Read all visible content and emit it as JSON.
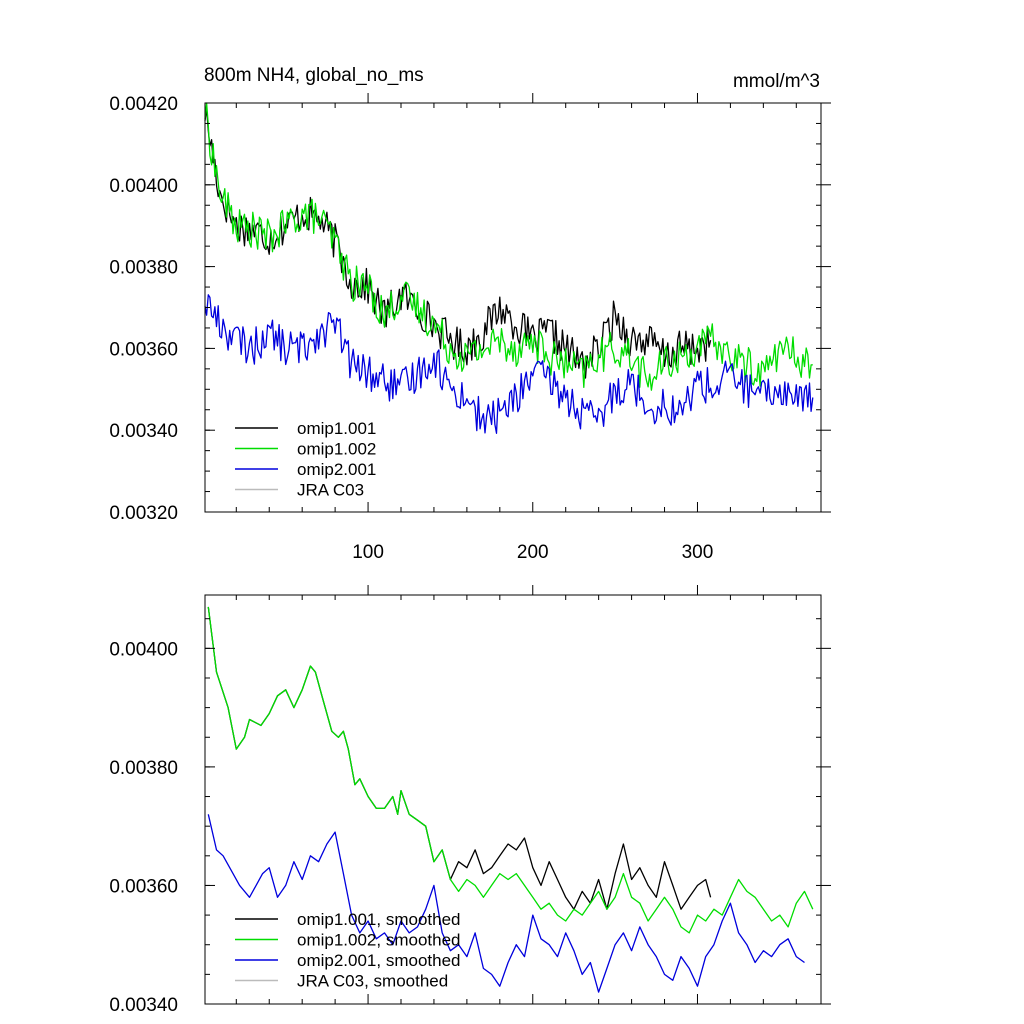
{
  "chart_data": [
    {
      "type": "line",
      "title": "800m NH4, global_no_ms",
      "units": "mmol/m^3",
      "xlabel": "",
      "ylabel": "",
      "xlim": [
        1,
        375
      ],
      "ylim": [
        0.0032,
        0.0042
      ],
      "xtick_labels": [
        "100",
        "200",
        "300"
      ],
      "xticks": [
        100,
        200,
        300
      ],
      "ytick_labels": [
        "0.00320",
        "0.00340",
        "0.00360",
        "0.00380",
        "0.00400",
        "0.00420"
      ],
      "yticks": [
        0.0032,
        0.0034,
        0.0036,
        0.0038,
        0.004,
        0.0042
      ],
      "legend_position": "bottom-left",
      "series": [
        {
          "name": "omip1.001",
          "color": "#000000",
          "x": [
            1,
            10,
            20,
            30,
            40,
            50,
            60,
            70,
            80,
            90,
            100,
            110,
            120,
            130,
            140,
            150,
            160,
            170,
            180,
            190,
            200,
            210,
            220,
            230,
            240,
            250,
            260,
            270,
            280,
            290,
            300,
            308
          ],
          "y": [
            0.00418,
            0.00398,
            0.0039,
            0.00389,
            0.00387,
            0.0039,
            0.00393,
            0.00392,
            0.00386,
            0.00376,
            0.00375,
            0.00368,
            0.00373,
            0.0037,
            0.00366,
            0.00362,
            0.0036,
            0.00364,
            0.0037,
            0.00366,
            0.00362,
            0.00364,
            0.0036,
            0.00356,
            0.0036,
            0.00368,
            0.00362,
            0.00362,
            0.00358,
            0.0036,
            0.0036,
            0.00362
          ]
        },
        {
          "name": "omip1.002",
          "color": "#00dd00",
          "x": [
            1,
            10,
            20,
            30,
            40,
            50,
            60,
            70,
            80,
            90,
            100,
            110,
            120,
            130,
            140,
            150,
            160,
            170,
            180,
            190,
            200,
            210,
            220,
            230,
            240,
            250,
            260,
            270,
            280,
            290,
            300,
            310,
            320,
            330,
            340,
            350,
            360,
            370
          ],
          "y": [
            0.00418,
            0.00398,
            0.0039,
            0.00389,
            0.00387,
            0.0039,
            0.00393,
            0.00392,
            0.00386,
            0.00376,
            0.00375,
            0.00368,
            0.00373,
            0.0037,
            0.00366,
            0.0036,
            0.00358,
            0.0036,
            0.00362,
            0.0036,
            0.00362,
            0.00358,
            0.00356,
            0.00354,
            0.00358,
            0.0036,
            0.00358,
            0.00352,
            0.00356,
            0.00358,
            0.0036,
            0.00362,
            0.00358,
            0.00356,
            0.00354,
            0.0036,
            0.00358,
            0.00356
          ]
        },
        {
          "name": "omip2.001",
          "color": "#0000dd",
          "x": [
            1,
            10,
            20,
            30,
            40,
            50,
            60,
            70,
            80,
            90,
            100,
            110,
            120,
            130,
            140,
            150,
            160,
            170,
            180,
            190,
            200,
            210,
            220,
            230,
            240,
            250,
            260,
            270,
            280,
            290,
            300,
            310,
            320,
            330,
            340,
            350,
            360,
            370
          ],
          "y": [
            0.00372,
            0.00366,
            0.00362,
            0.0036,
            0.00364,
            0.0036,
            0.0036,
            0.00364,
            0.00366,
            0.00356,
            0.00354,
            0.00352,
            0.0035,
            0.00354,
            0.00358,
            0.0035,
            0.00348,
            0.00342,
            0.00344,
            0.00348,
            0.00354,
            0.00352,
            0.00348,
            0.00344,
            0.00342,
            0.0035,
            0.00352,
            0.00346,
            0.00346,
            0.00344,
            0.00352,
            0.0035,
            0.00354,
            0.0035,
            0.00348,
            0.0035,
            0.00348,
            0.00348
          ]
        },
        {
          "name": "JRA C03",
          "color": "#bbbbbb",
          "x": [],
          "y": []
        }
      ]
    },
    {
      "type": "line",
      "title": "",
      "xlabel": "",
      "ylabel": "",
      "xlim": [
        1,
        375
      ],
      "ylim": [
        0.0034,
        0.00409
      ],
      "xticks": [
        100,
        200,
        300
      ],
      "xtick_labels": [],
      "ytick_labels": [
        "0.00340",
        "0.00360",
        "0.00380",
        "0.00400"
      ],
      "yticks": [
        0.0034,
        0.0036,
        0.0038,
        0.004
      ],
      "legend_position": "bottom-left",
      "series": [
        {
          "name": "omip1.001, smoothed",
          "color": "#000000",
          "x": [
            3,
            8,
            15,
            20,
            25,
            28,
            35,
            40,
            45,
            50,
            55,
            60,
            65,
            68,
            72,
            78,
            82,
            85,
            88,
            92,
            95,
            100,
            105,
            110,
            115,
            118,
            120,
            125,
            130,
            135,
            140,
            145,
            150,
            155,
            160,
            165,
            170,
            175,
            180,
            185,
            190,
            195,
            200,
            205,
            210,
            215,
            220,
            225,
            230,
            235,
            240,
            245,
            250,
            255,
            260,
            265,
            270,
            275,
            280,
            285,
            290,
            295,
            300,
            305,
            308
          ],
          "y": [
            0.00407,
            0.00396,
            0.0039,
            0.00383,
            0.00385,
            0.00388,
            0.00387,
            0.00389,
            0.00392,
            0.00393,
            0.0039,
            0.00393,
            0.00397,
            0.00396,
            0.00392,
            0.00386,
            0.00385,
            0.00386,
            0.00383,
            0.00377,
            0.00378,
            0.00375,
            0.00373,
            0.00373,
            0.00375,
            0.00372,
            0.00376,
            0.00372,
            0.00371,
            0.0037,
            0.00364,
            0.00366,
            0.00361,
            0.00364,
            0.00363,
            0.00366,
            0.00362,
            0.00363,
            0.00365,
            0.00367,
            0.00366,
            0.00368,
            0.00363,
            0.0036,
            0.00364,
            0.00361,
            0.00358,
            0.00356,
            0.00359,
            0.00357,
            0.00361,
            0.00356,
            0.00362,
            0.00367,
            0.00361,
            0.00363,
            0.0036,
            0.00358,
            0.00364,
            0.0036,
            0.00356,
            0.00358,
            0.0036,
            0.00361,
            0.00358
          ]
        },
        {
          "name": "omip1.002, smoothed",
          "color": "#00dd00",
          "x": [
            3,
            8,
            15,
            20,
            25,
            28,
            35,
            40,
            45,
            50,
            55,
            60,
            65,
            68,
            72,
            78,
            82,
            85,
            88,
            92,
            95,
            100,
            105,
            110,
            115,
            118,
            120,
            125,
            130,
            135,
            140,
            145,
            150,
            155,
            160,
            165,
            170,
            175,
            180,
            185,
            190,
            195,
            200,
            205,
            210,
            215,
            220,
            225,
            230,
            235,
            240,
            245,
            250,
            255,
            260,
            265,
            270,
            275,
            280,
            285,
            290,
            295,
            300,
            305,
            310,
            315,
            320,
            325,
            330,
            335,
            340,
            345,
            350,
            355,
            360,
            365,
            370
          ],
          "y": [
            0.00407,
            0.00396,
            0.0039,
            0.00383,
            0.00385,
            0.00388,
            0.00387,
            0.00389,
            0.00392,
            0.00393,
            0.0039,
            0.00393,
            0.00397,
            0.00396,
            0.00392,
            0.00386,
            0.00385,
            0.00386,
            0.00383,
            0.00377,
            0.00378,
            0.00375,
            0.00373,
            0.00373,
            0.00375,
            0.00372,
            0.00376,
            0.00372,
            0.00371,
            0.0037,
            0.00364,
            0.00366,
            0.00361,
            0.00359,
            0.00361,
            0.0036,
            0.00358,
            0.0036,
            0.00362,
            0.00361,
            0.00362,
            0.0036,
            0.00358,
            0.00356,
            0.00357,
            0.00355,
            0.00354,
            0.00356,
            0.00355,
            0.00357,
            0.00359,
            0.00356,
            0.00358,
            0.00362,
            0.00358,
            0.00357,
            0.00354,
            0.00356,
            0.00358,
            0.00356,
            0.00353,
            0.00352,
            0.00355,
            0.00354,
            0.00356,
            0.00355,
            0.00358,
            0.00361,
            0.00359,
            0.00358,
            0.00356,
            0.00354,
            0.00355,
            0.00353,
            0.00357,
            0.00359,
            0.00356
          ]
        },
        {
          "name": "omip2.001, smoothed",
          "color": "#0000dd",
          "x": [
            3,
            8,
            12,
            18,
            22,
            28,
            32,
            36,
            40,
            45,
            50,
            55,
            60,
            65,
            70,
            75,
            80,
            85,
            90,
            95,
            100,
            105,
            110,
            115,
            120,
            125,
            130,
            135,
            140,
            145,
            150,
            155,
            160,
            165,
            170,
            175,
            180,
            185,
            190,
            195,
            200,
            205,
            210,
            215,
            220,
            225,
            230,
            235,
            240,
            245,
            250,
            255,
            260,
            265,
            270,
            275,
            280,
            285,
            290,
            295,
            300,
            305,
            310,
            315,
            320,
            325,
            330,
            335,
            340,
            345,
            350,
            355,
            360,
            365
          ],
          "y": [
            0.00372,
            0.00366,
            0.00365,
            0.00362,
            0.0036,
            0.00358,
            0.0036,
            0.00362,
            0.00363,
            0.00358,
            0.0036,
            0.00364,
            0.00361,
            0.00365,
            0.00364,
            0.00367,
            0.00369,
            0.00362,
            0.00355,
            0.00352,
            0.00354,
            0.00351,
            0.00352,
            0.0035,
            0.00354,
            0.00352,
            0.00353,
            0.00356,
            0.0036,
            0.00352,
            0.00349,
            0.0035,
            0.00348,
            0.00352,
            0.00346,
            0.00345,
            0.00343,
            0.00347,
            0.0035,
            0.00348,
            0.00355,
            0.00351,
            0.0035,
            0.00348,
            0.00352,
            0.00349,
            0.00345,
            0.00347,
            0.00342,
            0.00346,
            0.0035,
            0.00352,
            0.00349,
            0.00353,
            0.0035,
            0.00348,
            0.00345,
            0.00344,
            0.00348,
            0.00346,
            0.00343,
            0.00348,
            0.0035,
            0.00354,
            0.00357,
            0.00352,
            0.0035,
            0.00347,
            0.00349,
            0.00348,
            0.0035,
            0.00351,
            0.00348,
            0.00347
          ]
        },
        {
          "name": "JRA C03, smoothed",
          "color": "#bbbbbb",
          "x": [],
          "y": []
        }
      ]
    }
  ]
}
